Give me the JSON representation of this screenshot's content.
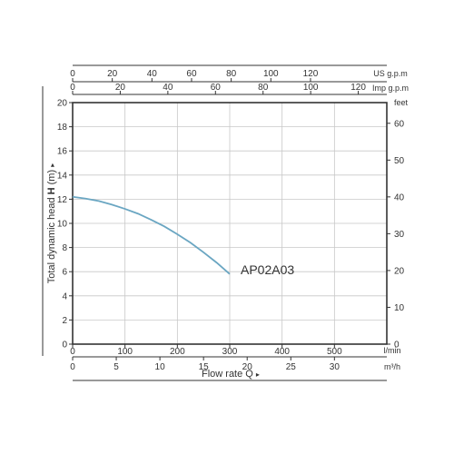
{
  "chart_data": {
    "type": "line",
    "series": [
      {
        "name": "AP02A03",
        "x": [
          0,
          25,
          50,
          75,
          100,
          125,
          150,
          175,
          200,
          225,
          250,
          275,
          300
        ],
        "y": [
          12.2,
          12.05,
          11.85,
          11.55,
          11.2,
          10.8,
          10.3,
          9.75,
          9.1,
          8.4,
          7.6,
          6.75,
          5.8
        ],
        "color": "#6aa6c2"
      }
    ],
    "xlabel": "Flow rate Q",
    "ylabel_text": "Total dynamic head",
    "ylabel_bold": "H",
    "ylabel_unit": "(m)",
    "arrow": "▸",
    "xlim": [
      0,
      600
    ],
    "ylim": [
      0,
      20
    ],
    "grid": true,
    "axes": {
      "bottom_lmin": {
        "unit": "l/min",
        "ticks": [
          0,
          100,
          200,
          300,
          400,
          500
        ]
      },
      "bottom_m3h": {
        "unit": "m³/h",
        "ticks": [
          0,
          5,
          10,
          15,
          20,
          25,
          30
        ]
      },
      "left_m": {
        "ticks": [
          0,
          2,
          4,
          6,
          8,
          10,
          12,
          14,
          16,
          18,
          20
        ]
      },
      "right_feet": {
        "unit": "feet",
        "ticks": [
          0,
          10,
          20,
          30,
          40,
          50,
          60
        ]
      },
      "top_imp": {
        "unit": "Imp g.p.m",
        "ticks": [
          0,
          20,
          40,
          60,
          80,
          100,
          120
        ]
      },
      "top_us": {
        "unit": "US g.p.m",
        "ticks": [
          0,
          20,
          40,
          60,
          80,
          100,
          120
        ]
      }
    },
    "colors": {
      "frame": "#333333",
      "grid": "#c8c8c8",
      "curve": "#6aa6c2"
    }
  }
}
